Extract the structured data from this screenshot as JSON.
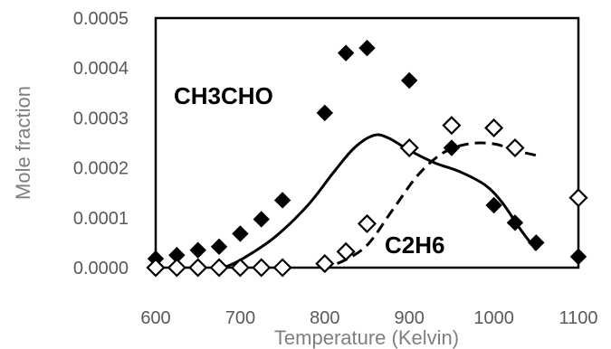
{
  "chart_data": {
    "type": "scatter",
    "title": "",
    "xlabel": "Temperature (Kelvin)",
    "ylabel": "Mole fraction",
    "xlim": [
      600,
      1100
    ],
    "ylim": [
      0,
      0.0005
    ],
    "grid": false,
    "legend": "none",
    "x_ticks": [
      600,
      700,
      800,
      900,
      1000,
      1100
    ],
    "x_tick_labels": [
      "600",
      "700",
      "800",
      "900",
      "1000",
      "1100"
    ],
    "y_ticks": [
      0,
      0.0001,
      0.0002,
      0.0003,
      0.0004,
      0.0005
    ],
    "y_tick_labels": [
      "0.0000",
      "0.0001",
      "0.0002",
      "0.0003",
      "0.0004",
      "0.0005"
    ],
    "annotations": [
      {
        "text": "CH3CHO",
        "x": 608,
        "y": 0.00035
      },
      {
        "text": "C2H6",
        "x": 910,
        "y": 4.9e-05
      }
    ],
    "series": [
      {
        "kind": "markers",
        "marker": "filled-diamond",
        "color": "#000000",
        "points": [
          [
            600,
            1.8e-05
          ],
          [
            625,
            2.5e-05
          ],
          [
            650,
            3.5e-05
          ],
          [
            675,
            4.2e-05
          ],
          [
            700,
            6.8e-05
          ],
          [
            725,
            9.7e-05
          ],
          [
            750,
            0.000135
          ],
          [
            800,
            0.00031
          ],
          [
            825,
            0.00043
          ],
          [
            850,
            0.00044
          ],
          [
            900,
            0.000375
          ],
          [
            950,
            0.00024
          ],
          [
            1000,
            0.000125
          ],
          [
            1025,
            9e-05
          ],
          [
            1050,
            5e-05
          ],
          [
            1100,
            2.2e-05
          ]
        ]
      },
      {
        "kind": "markers",
        "marker": "open-diamond",
        "color": "#000000",
        "points": [
          [
            600,
            0.0
          ],
          [
            625,
            0.0
          ],
          [
            650,
            0.0
          ],
          [
            675,
            0.0
          ],
          [
            700,
            0.0
          ],
          [
            725,
            0.0
          ],
          [
            750,
            0.0
          ],
          [
            800,
            8e-06
          ],
          [
            825,
            3.2e-05
          ],
          [
            850,
            8.8e-05
          ],
          [
            900,
            0.00024
          ],
          [
            950,
            0.000285
          ],
          [
            1000,
            0.00028
          ],
          [
            1025,
            0.00024
          ],
          [
            1100,
            0.00014
          ]
        ]
      },
      {
        "kind": "line",
        "style": "solid",
        "color": "#000000",
        "points": [
          [
            680,
            0.0
          ],
          [
            700,
            1.5e-05
          ],
          [
            740,
            6e-05
          ],
          [
            780,
            0.000125
          ],
          [
            810,
            0.00019
          ],
          [
            835,
            0.00024
          ],
          [
            858,
            0.000265
          ],
          [
            875,
            0.00026
          ],
          [
            900,
            0.000235
          ],
          [
            930,
            0.00021
          ],
          [
            960,
            0.000192
          ],
          [
            990,
            0.000165
          ],
          [
            1010,
            0.00013
          ],
          [
            1030,
            8e-05
          ],
          [
            1050,
            3.5e-05
          ]
        ]
      },
      {
        "kind": "line",
        "style": "dashed",
        "color": "#000000",
        "points": [
          [
            795,
            0.0
          ],
          [
            820,
            1.2e-05
          ],
          [
            850,
            4.5e-05
          ],
          [
            880,
            0.000115
          ],
          [
            910,
            0.000185
          ],
          [
            940,
            0.00023
          ],
          [
            970,
            0.000248
          ],
          [
            1000,
            0.000248
          ],
          [
            1025,
            0.000235
          ],
          [
            1050,
            0.000225
          ]
        ]
      }
    ]
  }
}
